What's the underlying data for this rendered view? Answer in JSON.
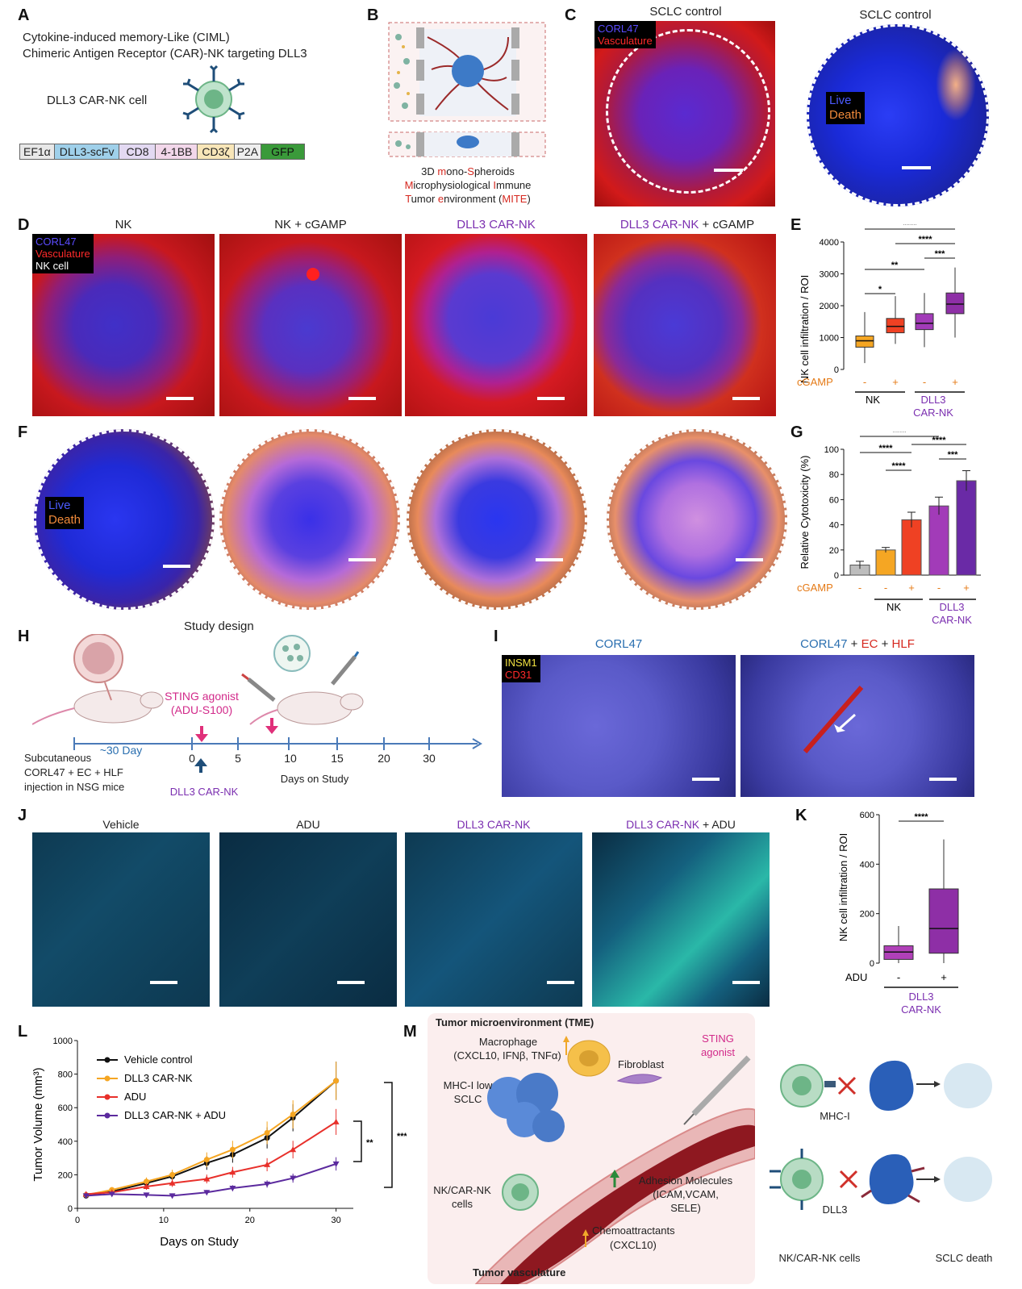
{
  "panel_labels": [
    "A",
    "B",
    "C",
    "D",
    "E",
    "F",
    "G",
    "H",
    "I",
    "J",
    "K",
    "L",
    "M"
  ],
  "A": {
    "line1": "Cytokine-induced memory-Like (CIML)",
    "line2": "Chimeric Antigen Receptor (CAR)-NK targeting DLL3",
    "cell_label": "DLL3 CAR-NK cell",
    "construct": [
      {
        "label": "EF1α",
        "color": "#e8e8e8"
      },
      {
        "label": "DLL3-scFv",
        "color": "#9fd0ea"
      },
      {
        "label": "CD8",
        "color": "#e3d9f2"
      },
      {
        "label": "4-1BB",
        "color": "#f2d7ea"
      },
      {
        "label": "CD3ζ",
        "color": "#f8e6b8"
      },
      {
        "label": "P2A",
        "color": "#eeeeee"
      },
      {
        "label": "GFP",
        "color": "#3a9a3a"
      }
    ]
  },
  "B": {
    "line1_a": "3D ",
    "line1_b": "m",
    "line1_c": "ono-",
    "line1_d": "S",
    "line1_e": "pheroids",
    "line2_a": "M",
    "line2_b": "icrophysiological ",
    "line2_c": "I",
    "line2_d": "mmune",
    "line3_a": "T",
    "line3_b": "umor ",
    "line3_c": "e",
    "line3_d": "nvironment (",
    "line3_e": "MITE",
    "line3_f": ")"
  },
  "C": {
    "title_left": "SCLC control",
    "title_right": "SCLC control",
    "legend_left": [
      "CORL47",
      "Vasculature"
    ],
    "legend_right": [
      "Live",
      "Death"
    ]
  },
  "D": {
    "titles": [
      "NK",
      "NK + cGAMP",
      "DLL3 CAR-NK",
      "DLL3 CAR-NK"
    ],
    "title4_suffix": " + cGAMP",
    "legend": [
      "CORL47",
      "Vasculature",
      "NK cell"
    ]
  },
  "F": {
    "legend": [
      "Live",
      "Death"
    ]
  },
  "E": {
    "ylabel": "NK cell infiltration / ROI",
    "yticks": [
      "0",
      "1000",
      "2000",
      "3000",
      "4000"
    ],
    "cgamp_label": "cGAMP",
    "cgamp_signs": [
      "-",
      "+",
      "-",
      "+"
    ],
    "group1": "NK",
    "group2a": "DLL3",
    "group2b": "CAR-NK",
    "sig": [
      "*",
      "**",
      "****",
      "****",
      "***"
    ]
  },
  "G": {
    "ylabel": "Relative Cytotoxicity (%)",
    "yticks": [
      "0",
      "20",
      "40",
      "60",
      "80",
      "100"
    ],
    "cgamp_label": "cGAMP",
    "cgamp_signs": [
      "-",
      "-",
      "+",
      "-",
      "+"
    ],
    "group1": "NK",
    "group2a": "DLL3",
    "group2b": "CAR-NK",
    "sig": [
      "****",
      "****",
      "****",
      "****",
      "***"
    ]
  },
  "H": {
    "title": "Study design",
    "sting_a": "STING agonist",
    "sting_b": "(ADU-S100)",
    "sub_a": "Subcutaneous",
    "sub_b": "CORL47 + EC + HLF",
    "sub_c": "injection in NSG mice",
    "pre": "~30 Day",
    "ticks": [
      "0",
      "5",
      "10",
      "15",
      "20",
      "30"
    ],
    "axis_label": "Days on Study",
    "dll3": "DLL3 CAR-NK"
  },
  "I": {
    "title_left": "CORL47",
    "title_right_a": "CORL47",
    "title_right_b": " + ",
    "title_right_c": "EC",
    "title_right_d": " + ",
    "title_right_e": "HLF",
    "legend": [
      "INSM1",
      "CD31"
    ]
  },
  "J": {
    "titles": [
      "Vehicle",
      "ADU",
      "DLL3 CAR-NK",
      "DLL3 CAR-NK"
    ],
    "title4_suffix": " + ADU"
  },
  "K": {
    "ylabel": "NK cell infiltration / ROI",
    "yticks": [
      "0",
      "200",
      "400",
      "600"
    ],
    "adu_label": "ADU",
    "adu_signs": [
      "-",
      "+"
    ],
    "group_a": "DLL3",
    "group_b": "CAR-NK",
    "sig": "****"
  },
  "M": {
    "tme": "Tumor microenvironment (TME)",
    "macro_a": "Macrophage",
    "macro_b": "(CXCL10, IFNβ, TNFα)",
    "fibro": "Fibroblast",
    "sting_a": "STING",
    "sting_b": "agonist",
    "mhc_a": "MHC-I low",
    "mhc_b": "SCLC",
    "nk_a": "NK/CAR-NK",
    "nk_b": "cells",
    "adh_a": "Adhesion Molecules",
    "adh_b": "(ICAM,VCAM,",
    "adh_c": "SELE)",
    "chemo_a": "Chemoattractants",
    "chemo_b": "(CXCL10)",
    "vasc": "Tumor vasculature",
    "mhci": "MHC-I",
    "dll3": "DLL3",
    "nkcells": "NK/CAR-NK cells",
    "death": "SCLC death"
  },
  "colors": {
    "orange": "#f5a623",
    "red": "#ef4123",
    "purple": "#8e2fa6",
    "darkpurple": "#5b2a9e",
    "black": "#111111"
  },
  "chart_data": [
    {
      "panel": "E",
      "type": "box",
      "ylabel": "NK cell infiltration / ROI",
      "ylim": [
        0,
        4000
      ],
      "categories": [
        "NK -cGAMP",
        "NK +cGAMP",
        "DLL3 CAR-NK -cGAMP",
        "DLL3 CAR-NK +cGAMP"
      ],
      "medians": [
        900,
        1350,
        1450,
        2050
      ],
      "q1": [
        700,
        1150,
        1250,
        1750
      ],
      "q3": [
        1050,
        1600,
        1750,
        2400
      ],
      "min": [
        200,
        800,
        700,
        1000
      ],
      "max": [
        1800,
        2300,
        2400,
        3200
      ],
      "colors": [
        "#f5a623",
        "#ef4123",
        "#a23bb8",
        "#8e2fa6"
      ]
    },
    {
      "panel": "G",
      "type": "bar",
      "ylabel": "Relative Cytotoxicity (%)",
      "ylim": [
        0,
        100
      ],
      "categories": [
        "SCLC control",
        "NK -cGAMP",
        "NK +cGAMP",
        "DLL3 CAR-NK -cGAMP",
        "DLL3 CAR-NK +cGAMP"
      ],
      "values": [
        8,
        20,
        44,
        55,
        75
      ],
      "errors": [
        3,
        2,
        6,
        7,
        8
      ],
      "colors": [
        "#bdbdbd",
        "#f5a623",
        "#ef4123",
        "#a23bb8",
        "#6a2aa6"
      ]
    },
    {
      "panel": "K",
      "type": "box",
      "ylabel": "NK cell infiltration / ROI",
      "ylim": [
        0,
        600
      ],
      "categories": [
        "ADU -",
        "ADU +"
      ],
      "medians": [
        45,
        140
      ],
      "q1": [
        15,
        40
      ],
      "q3": [
        70,
        300
      ],
      "min": [
        0,
        0
      ],
      "max": [
        150,
        500
      ],
      "colors": [
        "#b040b8",
        "#8e2fa6"
      ]
    },
    {
      "panel": "L",
      "type": "line",
      "title": "",
      "xlabel": "Days on Study",
      "ylabel": "Tumor Volume (mm³)",
      "xlim": [
        0,
        32
      ],
      "ylim": [
        0,
        1000
      ],
      "xticks": [
        "0",
        "10",
        "20",
        "30"
      ],
      "yticks": [
        "0",
        "200",
        "400",
        "600",
        "800",
        "1000"
      ],
      "x": [
        1,
        4,
        8,
        11,
        15,
        18,
        22,
        25,
        30
      ],
      "series": [
        {
          "name": "Vehicle control",
          "color": "#111111",
          "marker": "circle",
          "values": [
            75,
            100,
            150,
            190,
            270,
            320,
            420,
            540,
            760
          ]
        },
        {
          "name": "DLL3 CAR-NK",
          "color": "#f5a623",
          "marker": "circle",
          "values": [
            80,
            110,
            160,
            200,
            290,
            350,
            450,
            560,
            760
          ]
        },
        {
          "name": "ADU",
          "color": "#e8302b",
          "marker": "triangle",
          "values": [
            85,
            95,
            130,
            150,
            175,
            215,
            260,
            350,
            515
          ]
        },
        {
          "name": "DLL3 CAR-NK + ADU",
          "color": "#5b2a9e",
          "marker": "triangle-down",
          "values": [
            75,
            85,
            80,
            75,
            95,
            120,
            145,
            180,
            265
          ]
        }
      ],
      "sig": [
        "****",
        "**"
      ]
    }
  ]
}
